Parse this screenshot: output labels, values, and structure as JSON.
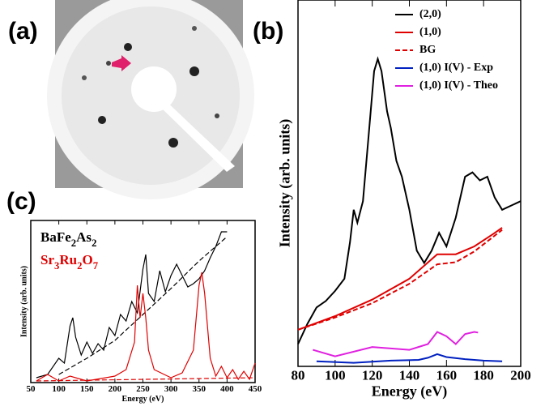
{
  "figure": {
    "panel_labels": [
      "(a)",
      "(b)",
      "(c)"
    ]
  },
  "chart_data": [
    {
      "type": "line",
      "xlabel": "Energy (eV)",
      "ylabel": "Intensity (arb. units)",
      "xlim": [
        80,
        200
      ],
      "ylim": [
        0,
        5.1
      ],
      "xticks": [
        80,
        100,
        120,
        140,
        160,
        180,
        200
      ],
      "legend": "upper right",
      "series": [
        {
          "name": "(2,0)",
          "color": "#000000",
          "dash": false,
          "x": [
            80,
            85,
            90,
            95,
            100,
            105,
            108,
            110,
            112,
            115,
            118,
            121,
            123,
            125,
            128,
            130,
            133,
            136,
            140,
            144,
            148,
            152,
            156,
            160,
            165,
            170,
            174,
            178,
            182,
            186,
            190,
            195,
            200
          ],
          "values": [
            0.31,
            0.59,
            0.82,
            0.91,
            1.05,
            1.22,
            1.73,
            2.18,
            2.0,
            2.3,
            3.2,
            4.11,
            4.28,
            4.11,
            3.55,
            3.32,
            2.86,
            2.64,
            2.18,
            1.61,
            1.44,
            1.61,
            1.86,
            1.67,
            2.07,
            2.64,
            2.7,
            2.59,
            2.64,
            2.35,
            2.18,
            2.24,
            2.3
          ]
        },
        {
          "name": "(1,0)",
          "color": "#e00000",
          "dash": false,
          "x": [
            80,
            100,
            120,
            140,
            155,
            165,
            175,
            185,
            190
          ],
          "values": [
            0.51,
            0.7,
            0.93,
            1.22,
            1.56,
            1.56,
            1.67,
            1.84,
            1.93
          ]
        },
        {
          "name": "BG",
          "color": "#e00000",
          "dash": true,
          "x": [
            80,
            100,
            120,
            140,
            155,
            165,
            175,
            185,
            190
          ],
          "values": [
            0.51,
            0.68,
            0.88,
            1.15,
            1.42,
            1.45,
            1.6,
            1.8,
            1.9
          ]
        },
        {
          "name": "(1,0) I(V) - Exp",
          "color": "#0020c0",
          "dash": false,
          "x": [
            90,
            110,
            130,
            145,
            150,
            155,
            160,
            170,
            180,
            190
          ],
          "values": [
            0.07,
            0.05,
            0.08,
            0.09,
            0.12,
            0.17,
            0.13,
            0.1,
            0.08,
            0.07
          ]
        },
        {
          "name": "(1,0) I(V) - Theo",
          "color": "#e020e0",
          "dash": false,
          "x": [
            88,
            100,
            120,
            140,
            150,
            155,
            160,
            165,
            170,
            175,
            177
          ],
          "values": [
            0.23,
            0.14,
            0.27,
            0.23,
            0.31,
            0.48,
            0.42,
            0.31,
            0.45,
            0.48,
            0.47
          ]
        }
      ]
    },
    {
      "type": "line",
      "xlabel": "Energy (eV)",
      "ylabel": "Intensity (arb. units)",
      "xlim": [
        50,
        450
      ],
      "ylim": [
        0,
        10
      ],
      "xticks": [
        50,
        100,
        150,
        200,
        250,
        300,
        350,
        400,
        450
      ],
      "legend": "upper left",
      "series": [
        {
          "name": "BaFe2As2",
          "color": "#000000",
          "dash": false,
          "x": [
            60,
            80,
            100,
            110,
            120,
            125,
            130,
            140,
            150,
            160,
            170,
            180,
            190,
            200,
            210,
            220,
            230,
            240,
            250,
            255,
            260,
            270,
            280,
            290,
            300,
            310,
            320,
            330,
            340,
            350,
            360,
            370,
            380,
            390,
            400
          ],
          "values": [
            0.3,
            0.5,
            1.5,
            1.2,
            3.5,
            4.0,
            2.8,
            1.7,
            2.5,
            1.8,
            2.4,
            2.0,
            3.4,
            2.9,
            4.2,
            3.8,
            5.0,
            4.3,
            7.0,
            7.9,
            5.5,
            5.0,
            6.9,
            5.6,
            6.6,
            7.3,
            6.6,
            5.9,
            6.1,
            6.4,
            6.9,
            7.7,
            8.4,
            9.3,
            9.3
          ]
        },
        {
          "color": "#000000",
          "dash": true,
          "x": [
            100,
            150,
            200,
            250,
            300,
            350,
            400
          ],
          "values": [
            0.5,
            1.5,
            2.6,
            4.2,
            5.8,
            7.5,
            9.0
          ]
        },
        {
          "name": "Sr3Ru2O7",
          "color": "#e00000",
          "dash": false,
          "x": [
            60,
            80,
            100,
            120,
            150,
            200,
            220,
            235,
            240,
            245,
            250,
            255,
            260,
            270,
            300,
            320,
            340,
            350,
            355,
            360,
            370,
            380,
            390,
            400,
            410,
            420,
            430,
            440,
            450
          ],
          "values": [
            0.1,
            0.5,
            0.1,
            0.4,
            0.1,
            0.4,
            0.8,
            2.5,
            6.0,
            4.0,
            5.5,
            4.0,
            2.0,
            0.8,
            0.3,
            0.6,
            2.0,
            6.0,
            6.8,
            5.5,
            1.5,
            0.4,
            1.0,
            0.3,
            0.8,
            0.2,
            0.7,
            0.2,
            1.2
          ]
        },
        {
          "color": "#e00000",
          "dash": true,
          "x": [
            60,
            450
          ],
          "values": [
            0.1,
            0.3
          ]
        }
      ]
    }
  ]
}
